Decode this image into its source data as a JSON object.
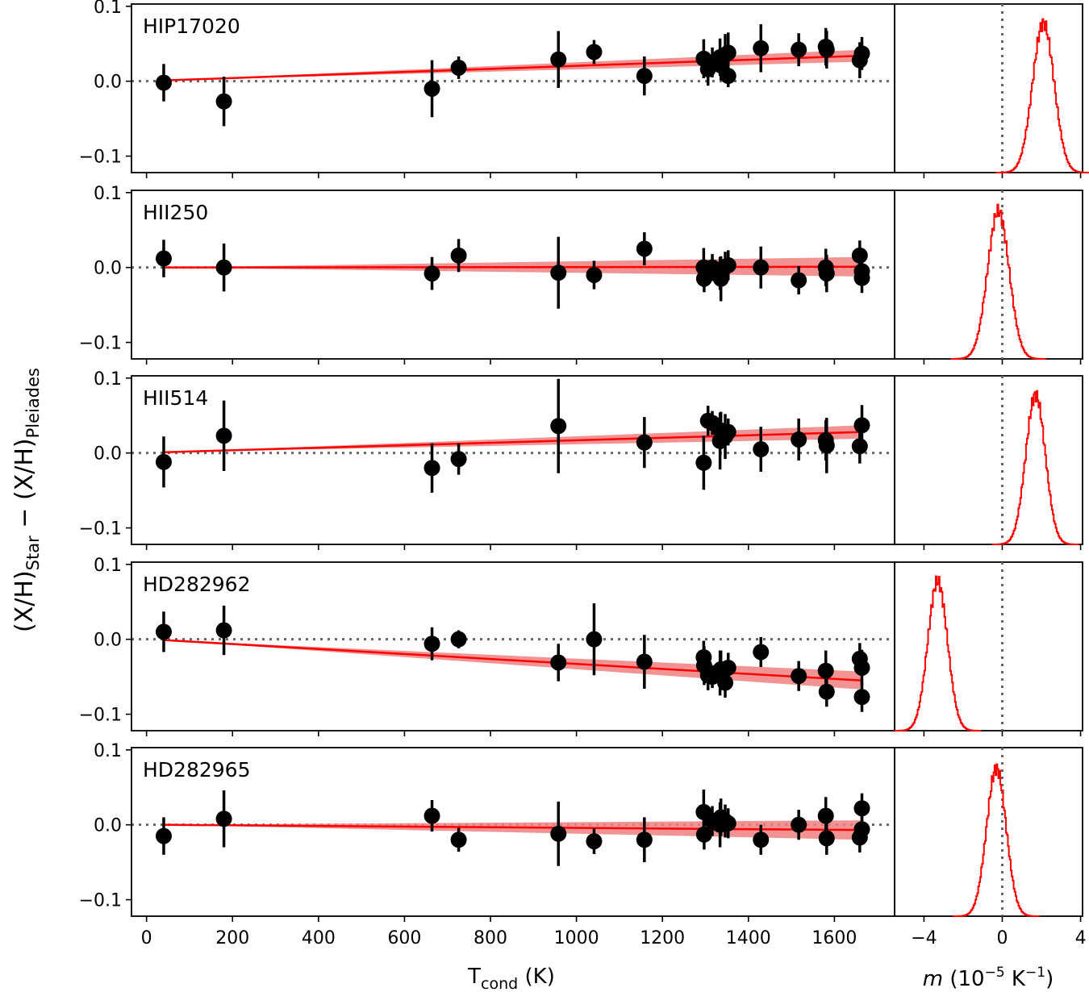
{
  "chart_data": {
    "type": "scatter",
    "ylabel": {
      "base_a": "(X/H)",
      "sub_a": "Star",
      "minus": "−",
      "base_b": "(X/H)",
      "sub_b": "Pleiades"
    },
    "xlabel_main": {
      "base": "T",
      "sub": "cond",
      "unit": " (K)"
    },
    "xlabel_hist": {
      "italic": "m",
      "unit_open": " (10",
      "exp_a": "−5",
      "unit_mid": " K",
      "exp_b": "−1",
      "unit_close": ")"
    },
    "main_xlim": [
      -35,
      1740
    ],
    "main_ylim": [
      -0.122,
      0.103
    ],
    "main_xticks": [
      0,
      200,
      400,
      600,
      800,
      1000,
      1200,
      1400,
      1600
    ],
    "yticks": [
      {
        "value": 0.1,
        "label": "0.1"
      },
      {
        "value": 0.0,
        "label": "0.0"
      },
      {
        "value": -0.1,
        "label": "−0.1"
      }
    ],
    "hist_xlim": [
      -5.5,
      4.1
    ],
    "hist_xticks": [
      {
        "value": -4,
        "label": "−4"
      },
      {
        "value": 0,
        "label": "0"
      },
      {
        "value": 4,
        "label": "4"
      }
    ],
    "colors": {
      "points": "#000000",
      "fit_line": "#ff0000",
      "fit_band": "#f08080",
      "reference": "#666666",
      "histogram": "#ff0000"
    },
    "panels": [
      {
        "star": "HIP17020",
        "fit": {
          "y_start": 0.001,
          "y_end": 0.034,
          "band_end": 0.008
        },
        "points": [
          [
            40,
            -0.002,
            0.025
          ],
          [
            180,
            -0.027,
            0.033
          ],
          [
            664,
            -0.01,
            0.038
          ],
          [
            726,
            0.018,
            0.015
          ],
          [
            958,
            0.029,
            0.038
          ],
          [
            1041,
            0.039,
            0.016
          ],
          [
            1158,
            0.007,
            0.026
          ],
          [
            1296,
            0.03,
            0.026
          ],
          [
            1306,
            0.016,
            0.022
          ],
          [
            1316,
            0.025,
            0.02
          ],
          [
            1334,
            0.032,
            0.025
          ],
          [
            1336,
            0.021,
            0.02
          ],
          [
            1346,
            0.035,
            0.028
          ],
          [
            1353,
            0.007,
            0.015
          ],
          [
            1353,
            0.038,
            0.027
          ],
          [
            1429,
            0.044,
            0.032
          ],
          [
            1517,
            0.042,
            0.022
          ],
          [
            1580,
            0.046,
            0.025
          ],
          [
            1582,
            0.042,
            0.025
          ],
          [
            1659,
            0.028,
            0.024
          ],
          [
            1664,
            0.037,
            0.022
          ]
        ],
        "hist": {
          "mu": 2.1,
          "sigma": 0.55,
          "peak": 0.095
        }
      },
      {
        "star": "HII250",
        "fit": {
          "y_start": 0.0,
          "y_end": 0.001,
          "band_end": 0.013
        },
        "points": [
          [
            40,
            0.012,
            0.025
          ],
          [
            180,
            0.0,
            0.032
          ],
          [
            664,
            -0.008,
            0.022
          ],
          [
            726,
            0.016,
            0.022
          ],
          [
            958,
            -0.007,
            0.048
          ],
          [
            1041,
            -0.01,
            0.019
          ],
          [
            1158,
            0.025,
            0.022
          ],
          [
            1296,
            0.0,
            0.026
          ],
          [
            1297,
            -0.015,
            0.018
          ],
          [
            1316,
            0.0,
            0.018
          ],
          [
            1334,
            -0.008,
            0.022
          ],
          [
            1336,
            -0.015,
            0.03
          ],
          [
            1346,
            0.001,
            0.02
          ],
          [
            1353,
            0.003,
            0.02
          ],
          [
            1429,
            0.0,
            0.028
          ],
          [
            1517,
            -0.017,
            0.019
          ],
          [
            1580,
            0.0,
            0.025
          ],
          [
            1582,
            -0.008,
            0.025
          ],
          [
            1659,
            0.016,
            0.02
          ],
          [
            1664,
            -0.005,
            0.02
          ],
          [
            1664,
            -0.014,
            0.02
          ]
        ],
        "hist": {
          "mu": -0.2,
          "sigma": 0.55,
          "peak": 0.094
        }
      },
      {
        "star": "HII514",
        "fit": {
          "y_start": 0.001,
          "y_end": 0.028,
          "band_end": 0.009
        },
        "points": [
          [
            40,
            -0.012,
            0.034
          ],
          [
            180,
            0.023,
            0.047
          ],
          [
            664,
            -0.02,
            0.033
          ],
          [
            726,
            -0.008,
            0.021
          ],
          [
            958,
            0.036,
            0.063
          ],
          [
            1158,
            0.014,
            0.034
          ],
          [
            1296,
            -0.013,
            0.036
          ],
          [
            1306,
            0.043,
            0.02
          ],
          [
            1316,
            0.04,
            0.016
          ],
          [
            1334,
            0.016,
            0.038
          ],
          [
            1336,
            0.03,
            0.025
          ],
          [
            1346,
            0.022,
            0.03
          ],
          [
            1353,
            0.028,
            0.018
          ],
          [
            1429,
            0.005,
            0.03
          ],
          [
            1517,
            0.018,
            0.028
          ],
          [
            1580,
            0.017,
            0.027
          ],
          [
            1582,
            0.01,
            0.037
          ],
          [
            1659,
            0.009,
            0.023
          ],
          [
            1664,
            0.037,
            0.027
          ]
        ],
        "hist": {
          "mu": 1.7,
          "sigma": 0.5,
          "peak": 0.095
        }
      },
      {
        "star": "HD282962",
        "fit": {
          "y_start": -0.001,
          "y_end": -0.055,
          "band_end": 0.012
        },
        "points": [
          [
            40,
            0.01,
            0.027
          ],
          [
            180,
            0.012,
            0.033
          ],
          [
            664,
            -0.006,
            0.022
          ],
          [
            726,
            0.0,
            0.012
          ],
          [
            958,
            -0.031,
            0.025
          ],
          [
            1041,
            0.0,
            0.048
          ],
          [
            1158,
            -0.03,
            0.036
          ],
          [
            1296,
            -0.024,
            0.022
          ],
          [
            1297,
            -0.035,
            0.026
          ],
          [
            1306,
            -0.048,
            0.02
          ],
          [
            1316,
            -0.05,
            0.015
          ],
          [
            1334,
            -0.045,
            0.03
          ],
          [
            1336,
            -0.04,
            0.025
          ],
          [
            1346,
            -0.058,
            0.02
          ],
          [
            1353,
            -0.038,
            0.02
          ],
          [
            1429,
            -0.017,
            0.02
          ],
          [
            1517,
            -0.049,
            0.02
          ],
          [
            1580,
            -0.042,
            0.027
          ],
          [
            1582,
            -0.07,
            0.02
          ],
          [
            1659,
            -0.026,
            0.021
          ],
          [
            1664,
            -0.038,
            0.024
          ],
          [
            1664,
            -0.077,
            0.02
          ]
        ],
        "hist": {
          "mu": -3.3,
          "sigma": 0.5,
          "peak": 0.095
        }
      },
      {
        "star": "HD282965",
        "fit": {
          "y_start": 0.0,
          "y_end": -0.007,
          "band_end": 0.013
        },
        "points": [
          [
            40,
            -0.015,
            0.025
          ],
          [
            180,
            0.008,
            0.038
          ],
          [
            664,
            0.012,
            0.021
          ],
          [
            726,
            -0.02,
            0.016
          ],
          [
            958,
            -0.012,
            0.043
          ],
          [
            1041,
            -0.022,
            0.017
          ],
          [
            1158,
            -0.02,
            0.03
          ],
          [
            1296,
            0.017,
            0.03
          ],
          [
            1297,
            -0.013,
            0.02
          ],
          [
            1316,
            0.005,
            0.02
          ],
          [
            1334,
            0.0,
            0.03
          ],
          [
            1336,
            0.01,
            0.025
          ],
          [
            1346,
            0.005,
            0.022
          ],
          [
            1353,
            0.002,
            0.02
          ],
          [
            1429,
            -0.02,
            0.02
          ],
          [
            1517,
            0.0,
            0.02
          ],
          [
            1580,
            0.012,
            0.025
          ],
          [
            1582,
            -0.018,
            0.022
          ],
          [
            1659,
            -0.017,
            0.02
          ],
          [
            1664,
            0.022,
            0.02
          ],
          [
            1664,
            -0.006,
            0.02
          ]
        ],
        "hist": {
          "mu": -0.3,
          "sigma": 0.5,
          "peak": 0.094
        }
      }
    ]
  }
}
